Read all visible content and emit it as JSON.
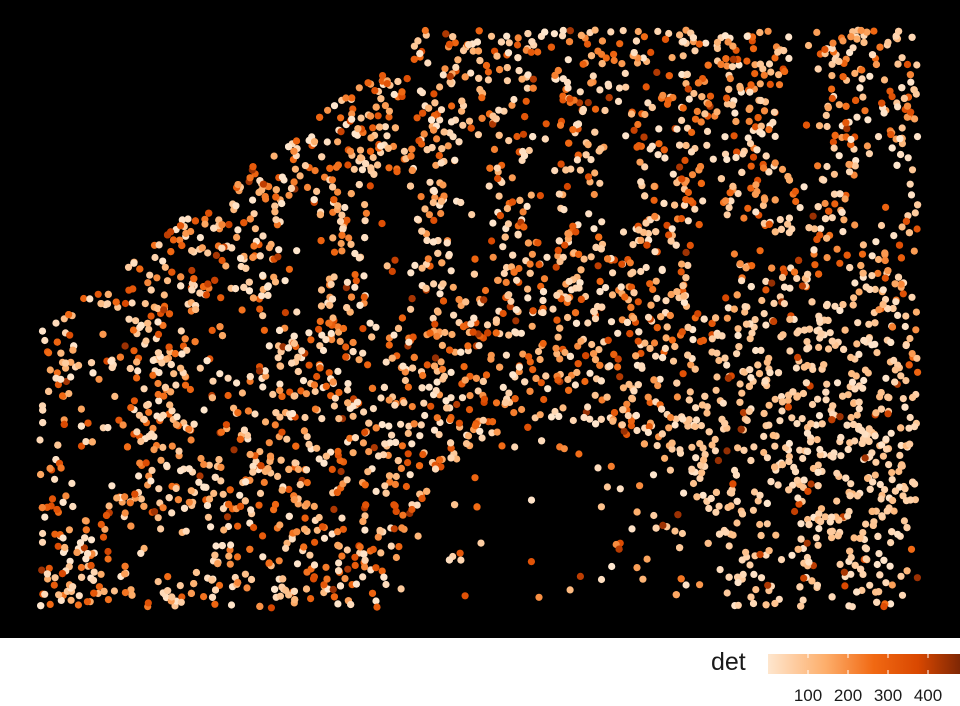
{
  "legend": {
    "title": "det",
    "ticks": [
      "100",
      "200",
      "300",
      "400"
    ],
    "tick_values": [
      100,
      200,
      300,
      400
    ],
    "range": [
      0,
      480
    ],
    "colors": {
      "low": "#fee6ce",
      "mid_low": "#fdae6b",
      "mid": "#f16913",
      "mid_high": "#d94801",
      "high": "#7f2704"
    }
  },
  "panel": {
    "background": "#000000"
  }
}
